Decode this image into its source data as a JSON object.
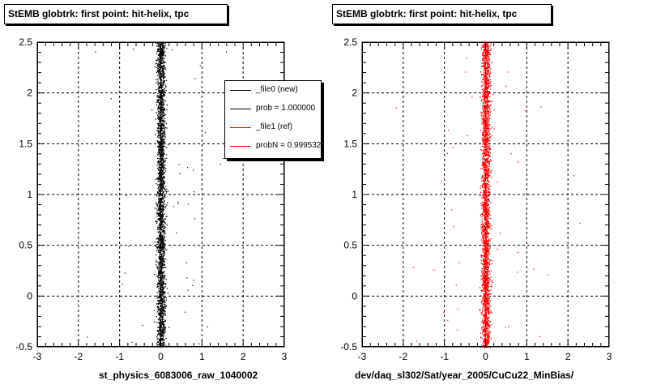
{
  "chart_data": [
    {
      "type": "scatter",
      "title": "StEMB globtrk: first point: hit-helix, tpc",
      "xlabel": "st_physics_6083006_raw_1040002",
      "ylabel": "",
      "xlim": [
        -3,
        3
      ],
      "ylim": [
        -0.5,
        2.5
      ],
      "x_ticks": [
        "-3",
        "-2",
        "-1",
        "0",
        "1",
        "2",
        "3"
      ],
      "y_ticks": [
        "-0.5",
        "0",
        "0.5",
        "1",
        "1.5",
        "2",
        "2.5"
      ],
      "grid": true,
      "legend_position": "top-right",
      "legend": [
        {
          "label": "_file0 (new)",
          "color": "#000000"
        },
        {
          "label": "prob = 1.000000",
          "color": "#000000"
        },
        {
          "label": "_file1 (ref)",
          "color": "#ff0000"
        },
        {
          "label": "probN = 0.999532",
          "color": "#ff0000"
        }
      ],
      "series": [
        {
          "color": "#000000",
          "distribution": {
            "x_center": 0.0,
            "x_spread": 0.05,
            "y_range": [
              -0.5,
              2.5
            ]
          }
        }
      ]
    },
    {
      "type": "scatter",
      "title": "StEMB globtrk: first point: hit-helix, tpc",
      "xlabel": "dev/daq_sl302/Sat/year_2005/CuCu22_MinBias/",
      "ylabel": "",
      "xlim": [
        -3,
        3
      ],
      "ylim": [
        -0.5,
        2.5
      ],
      "x_ticks": [
        "-3",
        "-2",
        "-1",
        "0",
        "1",
        "2",
        "3"
      ],
      "y_ticks": [
        "-0.5",
        "0",
        "0.5",
        "1",
        "1.5",
        "2",
        "2.5"
      ],
      "grid": true,
      "series": [
        {
          "color": "#ff0000",
          "distribution": {
            "x_center": 0.0,
            "x_spread": 0.05,
            "y_range": [
              -0.5,
              2.5
            ]
          }
        }
      ]
    }
  ]
}
